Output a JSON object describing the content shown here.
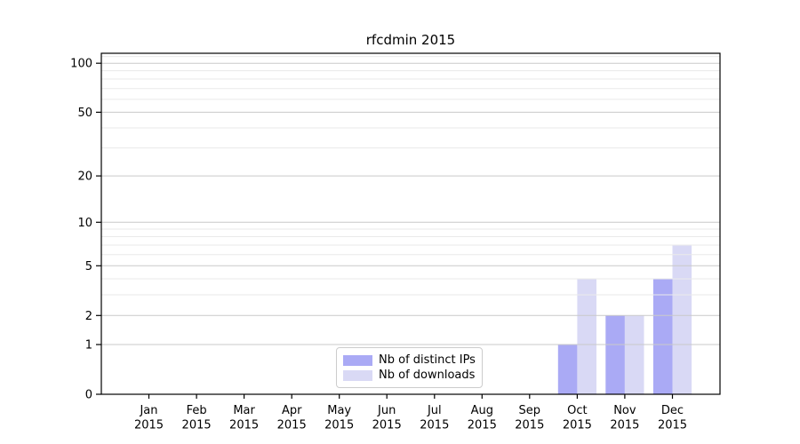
{
  "chart_data": {
    "type": "bar",
    "title": "rfcdmin 2015",
    "categories": [
      "Jan 2015",
      "Feb 2015",
      "Mar 2015",
      "Apr 2015",
      "May 2015",
      "Jun 2015",
      "Jul 2015",
      "Aug 2015",
      "Sep 2015",
      "Oct 2015",
      "Nov 2015",
      "Dec 2015"
    ],
    "series": [
      {
        "name": "Nb of distinct IPs",
        "key": "distinct-ips",
        "color": "#aaaaf5",
        "values": [
          0,
          0,
          0,
          0,
          0,
          0,
          0,
          0,
          0,
          1,
          2,
          4
        ]
      },
      {
        "name": "Nb of downloads",
        "key": "downloads",
        "color": "#d9d9f5",
        "values": [
          0,
          0,
          0,
          0,
          0,
          0,
          0,
          0,
          0,
          4,
          2,
          7
        ]
      }
    ],
    "xlabel": "",
    "ylabel": "",
    "y_scale": "log1p",
    "ylim": [
      0,
      115
    ],
    "y_ticks": [
      0,
      1,
      2,
      5,
      10,
      20,
      50,
      100
    ],
    "y_minor_ticks": [
      3,
      4,
      6,
      7,
      8,
      9,
      30,
      40,
      60,
      70,
      80,
      90,
      110
    ],
    "grid": true,
    "grid_above_bars": true,
    "legend_position": "lower-center"
  },
  "colors": {
    "background": "#ffffff",
    "axis": "#000000",
    "tick_label": "#000000",
    "grid_major": "#c9c9c9",
    "grid_minor": "#eaeaea",
    "bar_distinct_ips": "#aaaaf5",
    "bar_downloads": "#d9d9f5",
    "legend_border": "#cccccc",
    "legend_background": "#ffffff"
  }
}
